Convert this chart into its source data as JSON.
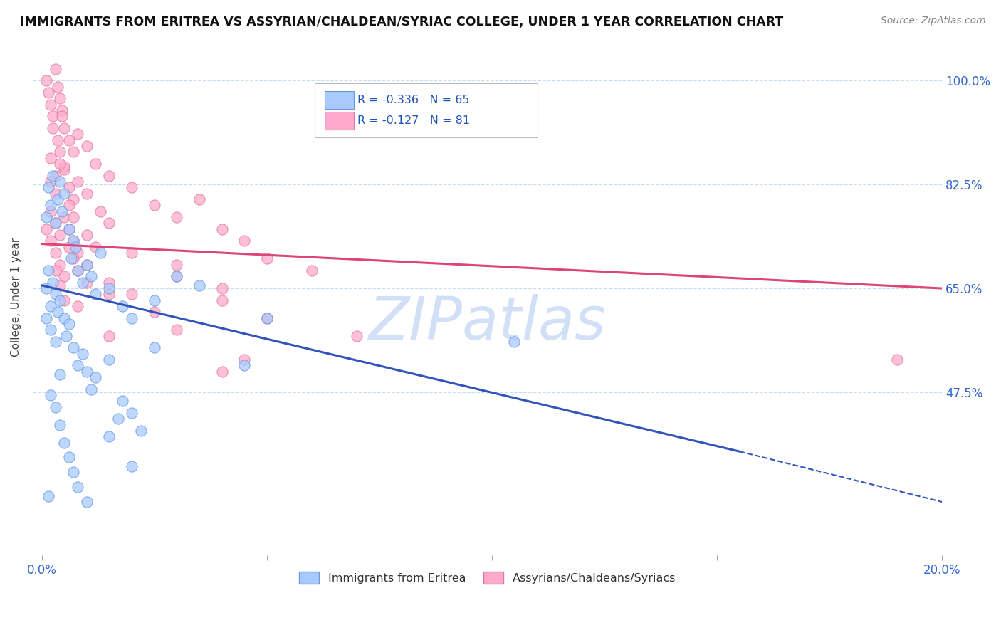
{
  "title": "IMMIGRANTS FROM ERITREA VS ASSYRIAN/CHALDEAN/SYRIAC COLLEGE, UNDER 1 YEAR CORRELATION CHART",
  "source": "Source: ZipAtlas.com",
  "ylabel": "College, Under 1 year",
  "xlim": [
    -0.2,
    20.0
  ],
  "ylim": [
    20.0,
    107.0
  ],
  "yticks": [
    47.5,
    65.0,
    82.5,
    100.0
  ],
  "ytick_labels": [
    "47.5%",
    "65.0%",
    "82.5%",
    "100.0%"
  ],
  "xtick_positions": [
    0.0,
    5.0,
    10.0,
    15.0,
    20.0
  ],
  "xtick_labels": [
    "0.0%",
    "",
    "",
    "",
    "20.0%"
  ],
  "blue_label": "Immigrants from Eritrea",
  "pink_label": "Assyrians/Chaldeans/Syriacs",
  "blue_R": -0.336,
  "blue_N": 65,
  "pink_R": -0.127,
  "pink_N": 81,
  "blue_color": "#A8CAFE",
  "blue_edge": "#6699DD",
  "pink_color": "#FFAACC",
  "pink_edge": "#DD7799",
  "blue_line_color": "#3355BB",
  "pink_line_color": "#DD4477",
  "watermark_color": "#CCDDF5",
  "grid_color": "#CCDDEE",
  "blue_line_x0": 0.0,
  "blue_line_y0": 65.5,
  "blue_line_x1": 15.5,
  "blue_line_y1": 37.5,
  "blue_line_dash_x1": 20.0,
  "blue_line_dash_y1": 29.0,
  "pink_line_x0": 0.0,
  "pink_line_y0": 72.5,
  "pink_line_x1": 20.0,
  "pink_line_y1": 65.0,
  "blue_scatter": [
    [
      0.1,
      77.0
    ],
    [
      0.15,
      82.0
    ],
    [
      0.2,
      79.0
    ],
    [
      0.25,
      84.0
    ],
    [
      0.3,
      76.0
    ],
    [
      0.35,
      80.0
    ],
    [
      0.4,
      83.0
    ],
    [
      0.45,
      78.0
    ],
    [
      0.5,
      81.0
    ],
    [
      0.6,
      75.0
    ],
    [
      0.65,
      70.0
    ],
    [
      0.7,
      73.0
    ],
    [
      0.75,
      72.0
    ],
    [
      0.8,
      68.0
    ],
    [
      0.9,
      66.0
    ],
    [
      1.0,
      69.0
    ],
    [
      1.1,
      67.0
    ],
    [
      1.2,
      64.0
    ],
    [
      1.3,
      71.0
    ],
    [
      1.5,
      65.0
    ],
    [
      1.8,
      62.0
    ],
    [
      2.0,
      60.0
    ],
    [
      2.5,
      63.0
    ],
    [
      3.0,
      67.0
    ],
    [
      3.5,
      65.5
    ],
    [
      0.1,
      65.0
    ],
    [
      0.15,
      68.0
    ],
    [
      0.2,
      62.0
    ],
    [
      0.25,
      66.0
    ],
    [
      0.3,
      64.0
    ],
    [
      0.35,
      61.0
    ],
    [
      0.4,
      63.0
    ],
    [
      0.5,
      60.0
    ],
    [
      0.55,
      57.0
    ],
    [
      0.6,
      59.0
    ],
    [
      0.7,
      55.0
    ],
    [
      0.8,
      52.0
    ],
    [
      0.9,
      54.0
    ],
    [
      1.0,
      51.0
    ],
    [
      1.1,
      48.0
    ],
    [
      1.2,
      50.0
    ],
    [
      1.5,
      53.0
    ],
    [
      1.8,
      46.0
    ],
    [
      2.0,
      44.0
    ],
    [
      2.2,
      41.0
    ],
    [
      0.1,
      60.0
    ],
    [
      0.2,
      58.0
    ],
    [
      0.3,
      56.0
    ],
    [
      0.4,
      42.0
    ],
    [
      0.5,
      39.0
    ],
    [
      0.6,
      36.5
    ],
    [
      0.7,
      34.0
    ],
    [
      0.8,
      31.5
    ],
    [
      1.0,
      29.0
    ],
    [
      1.5,
      40.0
    ],
    [
      2.5,
      55.0
    ],
    [
      4.5,
      52.0
    ],
    [
      5.0,
      60.0
    ],
    [
      10.5,
      56.0
    ],
    [
      0.2,
      47.0
    ],
    [
      0.4,
      50.5
    ],
    [
      0.3,
      45.0
    ],
    [
      1.7,
      43.0
    ],
    [
      2.0,
      35.0
    ],
    [
      0.15,
      30.0
    ]
  ],
  "pink_scatter": [
    [
      0.1,
      100.0
    ],
    [
      0.15,
      98.0
    ],
    [
      0.2,
      96.0
    ],
    [
      0.25,
      94.0
    ],
    [
      0.3,
      102.0
    ],
    [
      0.35,
      99.0
    ],
    [
      0.4,
      97.0
    ],
    [
      0.45,
      95.0
    ],
    [
      0.5,
      92.0
    ],
    [
      0.6,
      90.0
    ],
    [
      0.7,
      88.0
    ],
    [
      0.8,
      91.0
    ],
    [
      1.0,
      89.0
    ],
    [
      1.2,
      86.0
    ],
    [
      1.5,
      84.0
    ],
    [
      2.0,
      82.0
    ],
    [
      2.5,
      79.0
    ],
    [
      3.0,
      77.0
    ],
    [
      3.5,
      80.0
    ],
    [
      4.0,
      75.0
    ],
    [
      4.5,
      73.0
    ],
    [
      5.0,
      70.0
    ],
    [
      0.2,
      87.0
    ],
    [
      0.3,
      84.0
    ],
    [
      0.4,
      88.0
    ],
    [
      0.5,
      85.0
    ],
    [
      0.6,
      82.0
    ],
    [
      0.7,
      80.0
    ],
    [
      0.8,
      83.0
    ],
    [
      1.0,
      81.0
    ],
    [
      1.3,
      78.0
    ],
    [
      0.2,
      78.0
    ],
    [
      0.3,
      76.0
    ],
    [
      0.4,
      74.0
    ],
    [
      0.5,
      77.0
    ],
    [
      0.6,
      75.0
    ],
    [
      0.7,
      73.0
    ],
    [
      0.8,
      71.0
    ],
    [
      1.0,
      69.0
    ],
    [
      1.5,
      66.0
    ],
    [
      2.0,
      64.0
    ],
    [
      2.5,
      61.0
    ],
    [
      3.0,
      67.0
    ],
    [
      4.0,
      63.0
    ],
    [
      5.0,
      60.0
    ],
    [
      0.1,
      75.0
    ],
    [
      0.2,
      73.0
    ],
    [
      0.3,
      71.0
    ],
    [
      0.4,
      69.0
    ],
    [
      0.5,
      67.0
    ],
    [
      0.6,
      72.0
    ],
    [
      0.7,
      70.0
    ],
    [
      0.8,
      68.0
    ],
    [
      1.0,
      66.0
    ],
    [
      1.5,
      64.0
    ],
    [
      2.0,
      71.0
    ],
    [
      3.0,
      69.0
    ],
    [
      4.0,
      65.0
    ],
    [
      1.5,
      76.0
    ],
    [
      0.6,
      79.0
    ],
    [
      0.3,
      68.0
    ],
    [
      0.4,
      65.5
    ],
    [
      0.5,
      63.0
    ],
    [
      3.0,
      58.0
    ],
    [
      4.0,
      51.0
    ],
    [
      4.5,
      53.0
    ],
    [
      7.0,
      57.0
    ],
    [
      0.8,
      62.0
    ],
    [
      1.0,
      74.0
    ],
    [
      0.5,
      85.5
    ],
    [
      0.25,
      92.0
    ],
    [
      0.35,
      90.0
    ],
    [
      0.45,
      94.0
    ],
    [
      0.3,
      81.0
    ],
    [
      0.2,
      83.0
    ],
    [
      0.4,
      86.0
    ],
    [
      19.0,
      53.0
    ],
    [
      6.0,
      68.0
    ],
    [
      1.5,
      57.0
    ],
    [
      1.2,
      72.0
    ],
    [
      0.7,
      77.0
    ]
  ]
}
